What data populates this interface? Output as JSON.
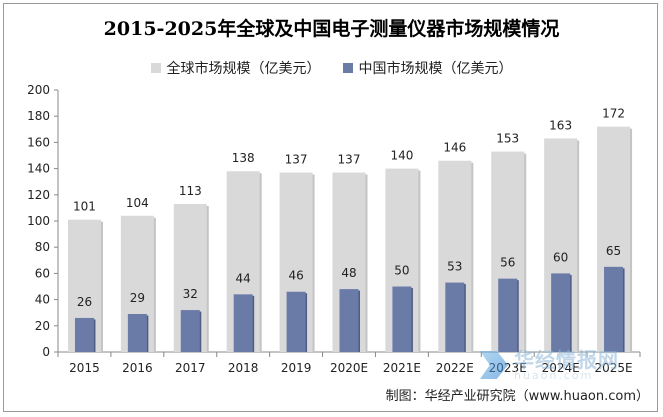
{
  "title": "2015-2025年全球及中国电子测量仪器市场规模情况",
  "source": "制图：华经产业研究院（www.huaon.com）",
  "watermark": {
    "cn": "华经情报网",
    "en": "huaon.com"
  },
  "chart_data": {
    "type": "bar",
    "title": "2015-2025年全球及中国电子测量仪器市场规模情况",
    "categories": [
      "2015",
      "2016",
      "2017",
      "2018",
      "2019",
      "2020E",
      "2021E",
      "2022E",
      "2023E",
      "2024E",
      "2025E"
    ],
    "series": [
      {
        "name": "全球市场规模（亿美元）",
        "values": [
          101,
          104,
          113,
          138,
          137,
          137,
          140,
          146,
          153,
          163,
          172
        ],
        "color": "#d9d9d9"
      },
      {
        "name": "中国市场规模（亿美元）",
        "values": [
          26,
          29,
          32,
          44,
          46,
          48,
          50,
          53,
          56,
          60,
          65
        ],
        "color": "#6a7ba8"
      }
    ],
    "ylim": [
      0,
      200
    ],
    "yticks": [
      0,
      20,
      40,
      60,
      80,
      100,
      120,
      140,
      160,
      180,
      200
    ],
    "grid": false,
    "legend": "top-center",
    "xlabel": "",
    "ylabel": ""
  }
}
